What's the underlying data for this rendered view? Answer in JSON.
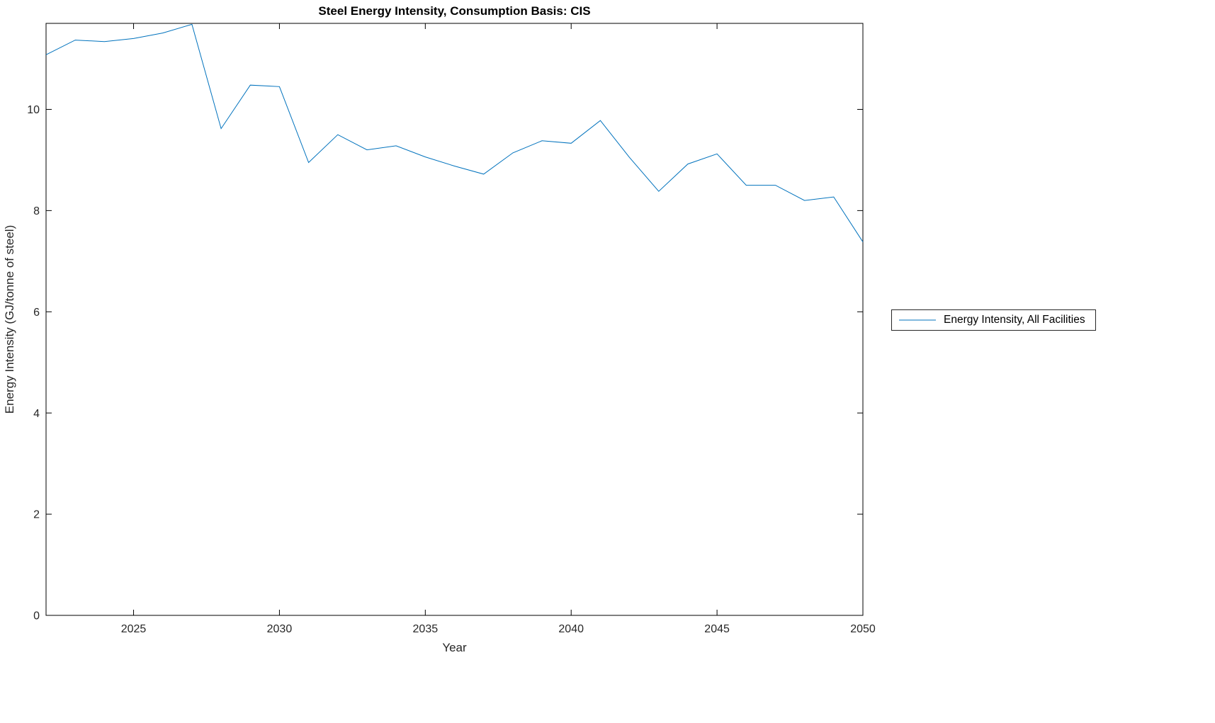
{
  "chart_data": {
    "type": "line",
    "title": "Steel Energy Intensity, Consumption Basis: CIS",
    "xlabel": "Year",
    "ylabel": "Energy Intensity (GJ/tonne of steel)",
    "xlim": [
      2022,
      2050
    ],
    "ylim": [
      0,
      11.7
    ],
    "x_ticks": [
      2025,
      2030,
      2035,
      2040,
      2045,
      2050
    ],
    "y_ticks": [
      0,
      2,
      4,
      6,
      8,
      10
    ],
    "grid": false,
    "legend_position": "right-outside",
    "line_color": "#0072BD",
    "axis_color": "#000000",
    "tick_label_color": "#262626",
    "x": [
      2022,
      2023,
      2024,
      2025,
      2026,
      2027,
      2028,
      2029,
      2030,
      2031,
      2032,
      2033,
      2034,
      2035,
      2036,
      2037,
      2038,
      2039,
      2040,
      2041,
      2042,
      2043,
      2044,
      2045,
      2046,
      2047,
      2048,
      2049,
      2050
    ],
    "series": [
      {
        "name": "Energy Intensity, All Facilities",
        "values": [
          11.08,
          11.37,
          11.34,
          11.4,
          11.51,
          11.68,
          9.62,
          10.48,
          10.45,
          8.95,
          9.5,
          9.2,
          9.28,
          9.06,
          8.88,
          8.72,
          9.14,
          9.38,
          9.33,
          9.78,
          9.05,
          8.38,
          8.92,
          9.12,
          8.5,
          8.5,
          8.2,
          8.27,
          7.38
        ]
      }
    ]
  }
}
